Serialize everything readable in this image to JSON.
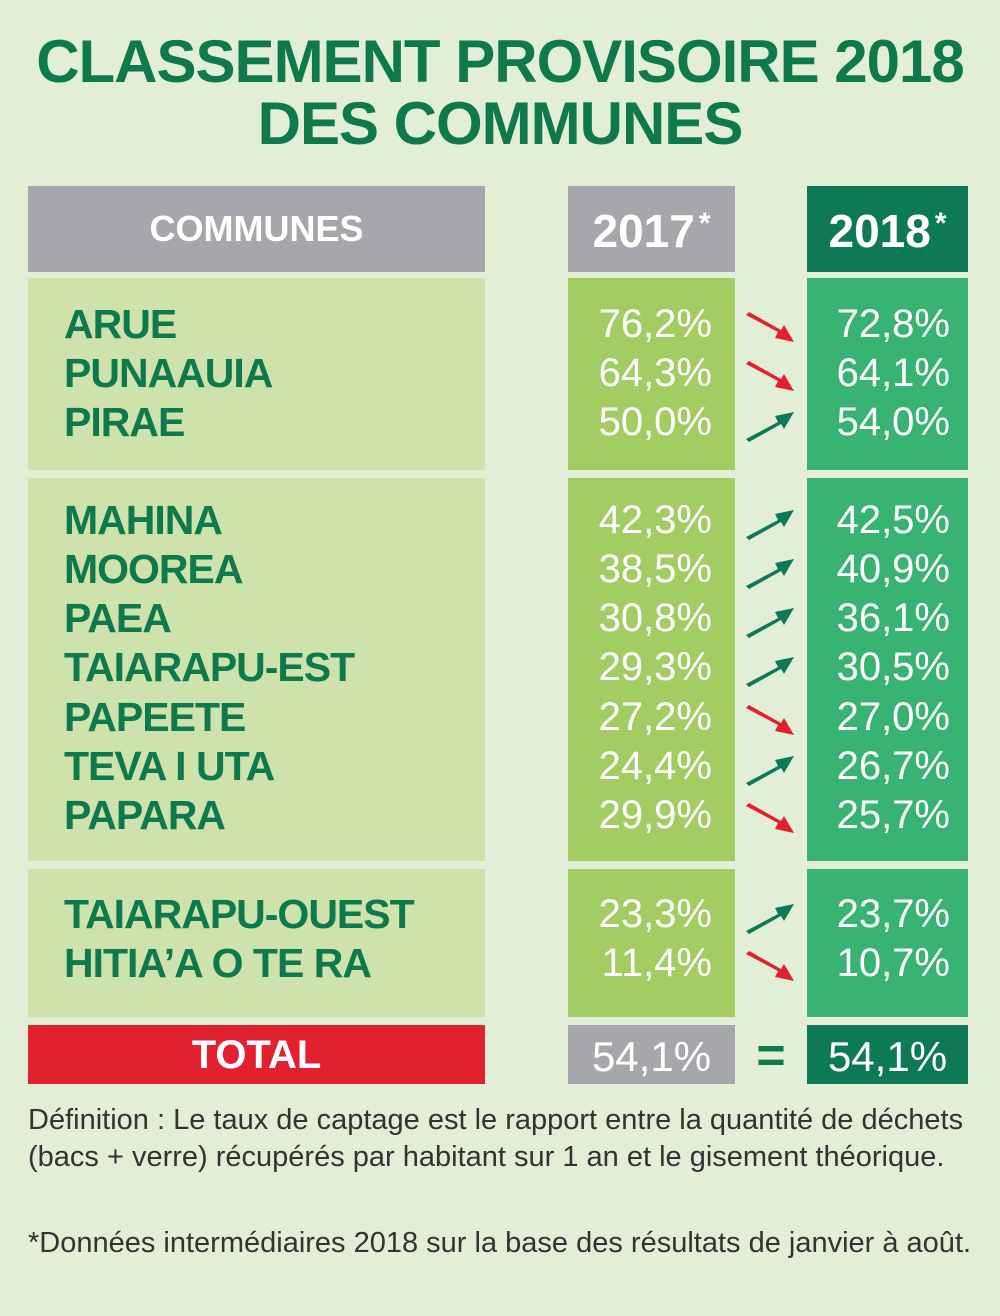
{
  "title": {
    "line1": "CLASSEMENT PROVISOIRE 2018",
    "line2": "DES COMMUNES"
  },
  "header": {
    "communes": "COMMUNES",
    "col2017": "2017",
    "col2018": "2018",
    "asterisk": "*"
  },
  "groups": [
    [
      {
        "name": "ARUE",
        "v2017": "76,2%",
        "v2018": "72,8%",
        "trend": "down"
      },
      {
        "name": "PUNAAUIA",
        "v2017": "64,3%",
        "v2018": "64,1%",
        "trend": "down"
      },
      {
        "name": "PIRAE",
        "v2017": "50,0%",
        "v2018": "54,0%",
        "trend": "up"
      }
    ],
    [
      {
        "name": "MAHINA",
        "v2017": "42,3%",
        "v2018": "42,5%",
        "trend": "up"
      },
      {
        "name": "MOOREA",
        "v2017": "38,5%",
        "v2018": "40,9%",
        "trend": "up"
      },
      {
        "name": "PAEA",
        "v2017": "30,8%",
        "v2018": "36,1%",
        "trend": "up"
      },
      {
        "name": "TAIARAPU-EST",
        "v2017": "29,3%",
        "v2018": "30,5%",
        "trend": "up"
      },
      {
        "name": "PAPEETE",
        "v2017": "27,2%",
        "v2018": "27,0%",
        "trend": "down"
      },
      {
        "name": "TEVA I UTA",
        "v2017": "24,4%",
        "v2018": "26,7%",
        "trend": "up"
      },
      {
        "name": "PAPARA",
        "v2017": "29,9%",
        "v2018": "25,7%",
        "trend": "down"
      }
    ],
    [
      {
        "name": "TAIARAPU-OUEST",
        "v2017": "23,3%",
        "v2018": "23,7%",
        "trend": "up"
      },
      {
        "name": "HITIA’A O TE RA",
        "v2017": "11,4%",
        "v2018": "10,7%",
        "trend": "down"
      }
    ]
  ],
  "total": {
    "label": "TOTAL",
    "v2017": "54,1%",
    "sign": "=",
    "v2018": "54,1%"
  },
  "notes": {
    "definition": "Définition : Le taux de captage est le rapport entre la quantité de déchets  (bacs + verre) récupérés par habitant sur 1 an et le gisement théorique.",
    "footnote": "*Données intermédiaires 2018 sur la base des résultats de janvier à août."
  },
  "colors": {
    "up_arrow": "#0d7a55",
    "down_arrow": "#e3202f"
  }
}
